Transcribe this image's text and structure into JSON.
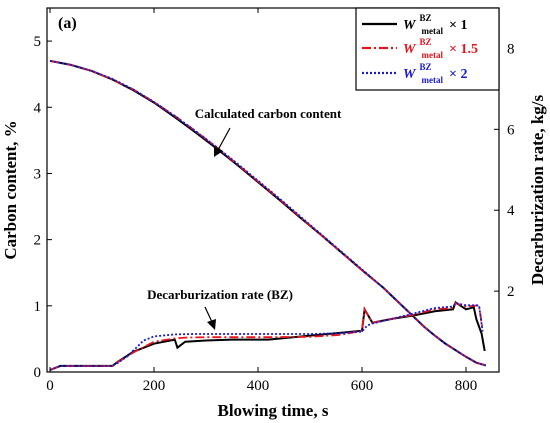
{
  "chart_data": {
    "type": "line",
    "panel_label": "(a)",
    "xlabel": "Blowing time, s",
    "ylabel_left": "Carbon content, %",
    "ylabel_right": "Decarburization rate, kg/s",
    "xlim": [
      0,
      840
    ],
    "ylim_left": [
      0,
      5.5
    ],
    "ylim_right": [
      0,
      9
    ],
    "x_ticks": [
      0,
      200,
      400,
      600,
      800
    ],
    "y_left_ticks": [
      0,
      1,
      2,
      3,
      4,
      5
    ],
    "y_right_ticks": [
      2,
      4,
      6,
      8
    ],
    "grid": false,
    "legend_position": "top-right",
    "legend": [
      {
        "main": "W",
        "sup": "BZ",
        "sub": "metal",
        "mult": "× 1",
        "color": "#000000",
        "dash": "solid"
      },
      {
        "main": "W",
        "sup": "BZ",
        "sub": "metal",
        "mult": "× 1.5",
        "color": "#e8141b",
        "dash": "dashdot"
      },
      {
        "main": "W",
        "sup": "BZ",
        "sub": "metal",
        "mult": "× 2",
        "color": "#1a1ad6",
        "dash": "dotted"
      }
    ],
    "annotations": [
      {
        "text": "Calculated carbon content"
      },
      {
        "text": "Decarburization rate (BZ)"
      }
    ],
    "series": [
      {
        "group": "carbon",
        "axis": "left",
        "color": "#000000",
        "dash": "solid",
        "x": [
          0,
          40,
          80,
          120,
          160,
          200,
          240,
          280,
          320,
          360,
          400,
          440,
          480,
          520,
          560,
          600,
          640,
          680,
          700,
          720,
          740,
          760,
          780,
          800,
          820,
          838
        ],
        "y": [
          4.7,
          4.64,
          4.55,
          4.42,
          4.26,
          4.07,
          3.85,
          3.62,
          3.38,
          3.13,
          2.87,
          2.61,
          2.34,
          2.08,
          1.81,
          1.54,
          1.28,
          0.98,
          0.83,
          0.68,
          0.55,
          0.43,
          0.33,
          0.23,
          0.14,
          0.1
        ]
      },
      {
        "group": "carbon",
        "axis": "left",
        "color": "#e8141b",
        "dash": "dashdot",
        "x": [
          0,
          40,
          80,
          120,
          160,
          200,
          240,
          280,
          320,
          360,
          400,
          440,
          480,
          520,
          560,
          600,
          640,
          680,
          700,
          720,
          740,
          760,
          780,
          800,
          820,
          838
        ],
        "y": [
          4.7,
          4.64,
          4.55,
          4.42,
          4.27,
          4.08,
          3.87,
          3.64,
          3.4,
          3.14,
          2.88,
          2.62,
          2.35,
          2.08,
          1.81,
          1.54,
          1.28,
          0.98,
          0.83,
          0.68,
          0.55,
          0.43,
          0.33,
          0.23,
          0.14,
          0.1
        ]
      },
      {
        "group": "carbon",
        "axis": "left",
        "color": "#1a1ad6",
        "dash": "dotted",
        "x": [
          0,
          40,
          80,
          120,
          160,
          200,
          240,
          280,
          320,
          360,
          400,
          440,
          480,
          520,
          560,
          600,
          640,
          680,
          700,
          720,
          740,
          760,
          780,
          800,
          820,
          838
        ],
        "y": [
          4.7,
          4.64,
          4.55,
          4.43,
          4.27,
          4.08,
          3.87,
          3.64,
          3.4,
          3.15,
          2.89,
          2.63,
          2.36,
          2.09,
          1.82,
          1.55,
          1.28,
          0.98,
          0.83,
          0.68,
          0.55,
          0.43,
          0.33,
          0.23,
          0.14,
          0.1
        ]
      },
      {
        "group": "rate",
        "axis": "right",
        "color": "#000000",
        "dash": "solid",
        "x": [
          0,
          20,
          120,
          130,
          160,
          200,
          240,
          245,
          260,
          300,
          350,
          420,
          500,
          560,
          600,
          605,
          620,
          660,
          700,
          740,
          775,
          780,
          800,
          815,
          820,
          830,
          836
        ],
        "y": [
          0.05,
          0.15,
          0.15,
          0.25,
          0.5,
          0.7,
          0.8,
          0.6,
          0.75,
          0.78,
          0.8,
          0.8,
          0.9,
          0.97,
          1.02,
          1.55,
          1.22,
          1.32,
          1.4,
          1.5,
          1.55,
          1.72,
          1.55,
          1.6,
          1.3,
          0.95,
          0.52
        ]
      },
      {
        "group": "rate",
        "axis": "right",
        "color": "#e8141b",
        "dash": "dashdot",
        "x": [
          0,
          20,
          120,
          130,
          160,
          200,
          240,
          260,
          300,
          350,
          420,
          500,
          560,
          600,
          605,
          620,
          660,
          700,
          740,
          775,
          780,
          800,
          825,
          832
        ],
        "y": [
          0.05,
          0.15,
          0.15,
          0.24,
          0.48,
          0.75,
          0.83,
          0.85,
          0.86,
          0.86,
          0.86,
          0.87,
          0.92,
          1.02,
          1.55,
          1.22,
          1.32,
          1.42,
          1.55,
          1.58,
          1.7,
          1.62,
          1.65,
          1.05
        ]
      },
      {
        "group": "rate",
        "axis": "right",
        "color": "#1a1ad6",
        "dash": "dotted",
        "x": [
          0,
          20,
          120,
          130,
          150,
          180,
          200,
          240,
          280,
          320,
          400,
          500,
          560,
          600,
          610,
          620,
          660,
          700,
          740,
          775,
          780,
          800,
          825,
          832
        ],
        "y": [
          0.05,
          0.15,
          0.15,
          0.22,
          0.4,
          0.78,
          0.88,
          0.93,
          0.94,
          0.94,
          0.94,
          0.94,
          0.96,
          1.0,
          1.15,
          1.2,
          1.32,
          1.45,
          1.58,
          1.62,
          1.7,
          1.65,
          1.65,
          1.0
        ]
      }
    ]
  }
}
